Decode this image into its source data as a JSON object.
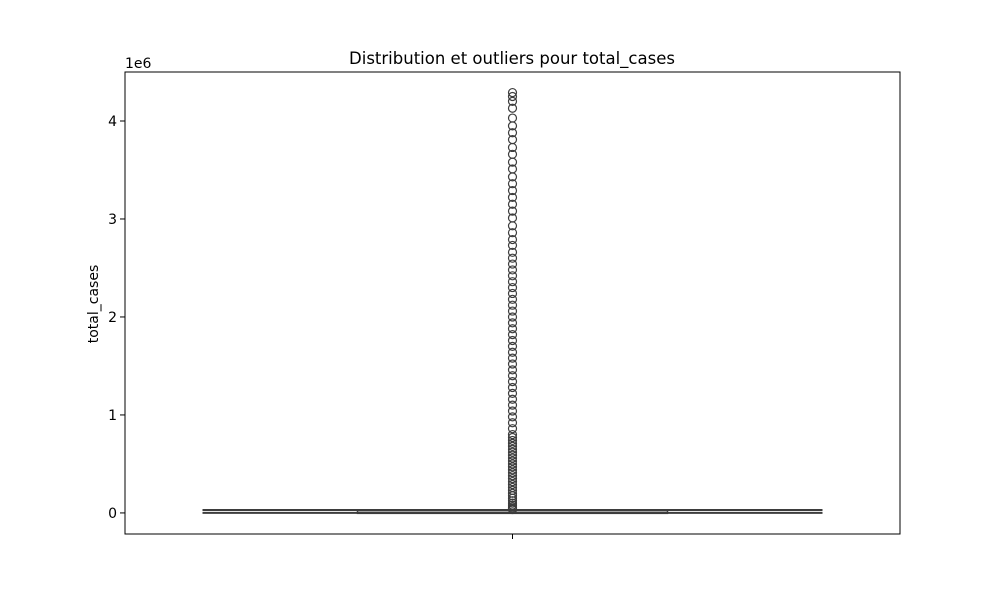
{
  "chart_data": {
    "type": "box",
    "title": "Distribution et outliers pour total_cases",
    "xlabel": "",
    "ylabel": "total_cases",
    "y_offset_label": "1e6",
    "ylim": [
      -215000,
      4500000
    ],
    "yticks": [
      0,
      1,
      2,
      3,
      4
    ],
    "grid": false,
    "box": {
      "whisker_low": 0,
      "q1": 1000,
      "median": 5000,
      "q3": 20000,
      "whisker_high": 30000
    },
    "outliers": [
      4290000,
      4250000,
      4200000,
      4130000,
      4030000,
      3950000,
      3880000,
      3810000,
      3730000,
      3660000,
      3580000,
      3510000,
      3430000,
      3360000,
      3290000,
      3220000,
      3150000,
      3080000,
      3010000,
      2930000,
      2860000,
      2790000,
      2730000,
      2660000,
      2600000,
      2540000,
      2480000,
      2420000,
      2360000,
      2300000,
      2240000,
      2180000,
      2120000,
      2060000,
      2000000,
      1940000,
      1880000,
      1820000,
      1760000,
      1700000,
      1640000,
      1580000,
      1520000,
      1460000,
      1400000,
      1340000,
      1280000,
      1220000,
      1160000,
      1100000,
      1040000,
      980000,
      920000,
      860000,
      800000,
      770000,
      740000,
      710000,
      680000,
      650000,
      620000,
      590000,
      560000,
      530000,
      500000,
      470000,
      440000,
      410000,
      380000,
      350000,
      320000,
      290000,
      260000,
      230000,
      200000,
      175000,
      150000,
      125000,
      100000,
      80000,
      60000,
      45000,
      35000
    ]
  },
  "colors": {
    "box_line": "#3d3d3d",
    "outlier_edge": "#3d3d3d",
    "axes": "#000000"
  }
}
